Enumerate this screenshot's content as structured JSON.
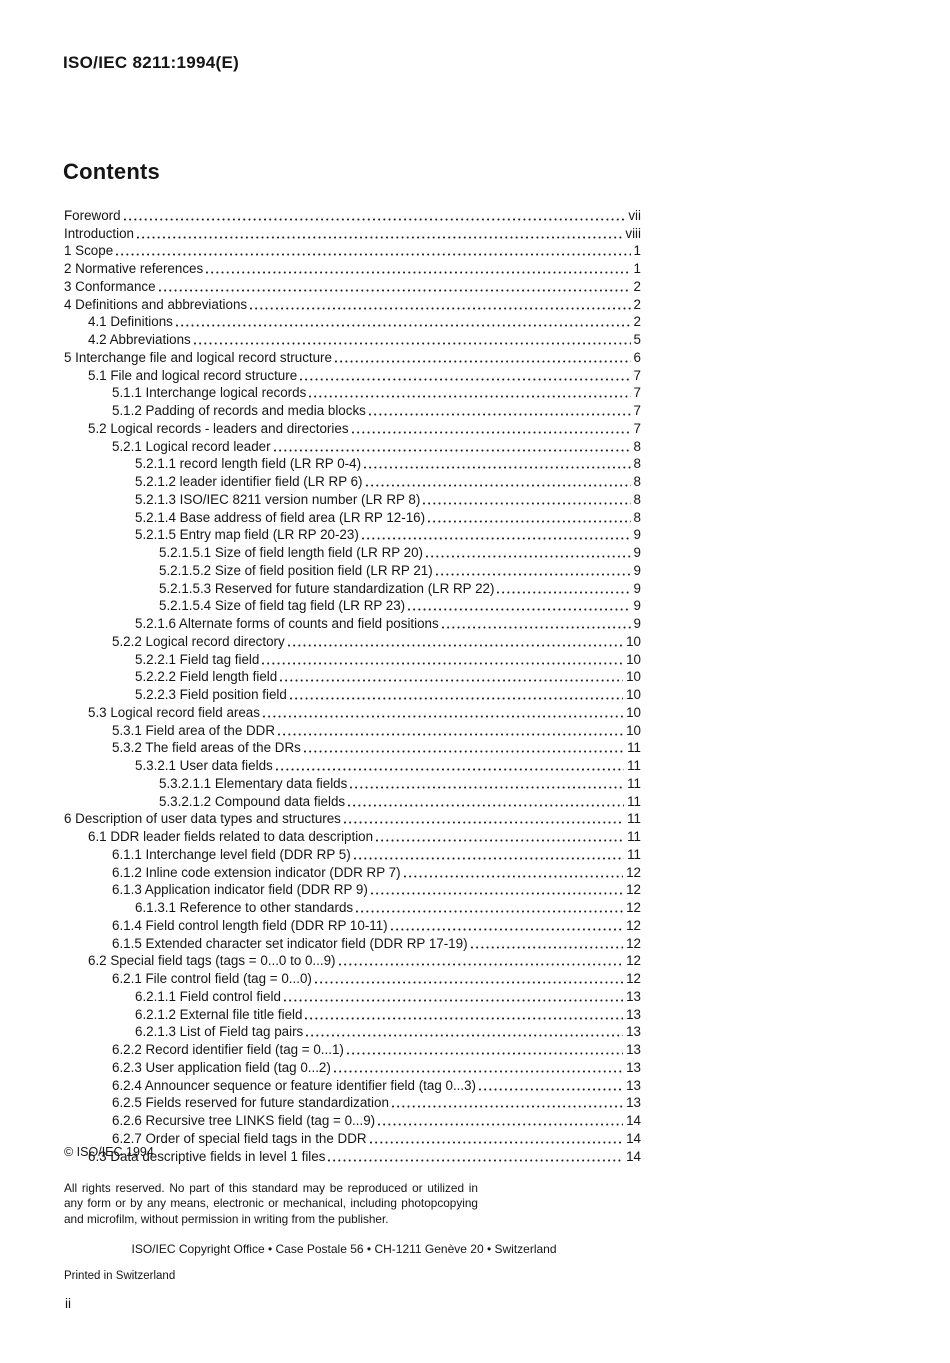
{
  "doc": {
    "header": "ISO/IEC 8211:1994(E)",
    "title": "Contents",
    "page_number": "ii"
  },
  "toc": {
    "entries": [
      {
        "level": 0,
        "label": "Foreword",
        "page": "vii"
      },
      {
        "level": 0,
        "label": "Introduction",
        "page": "viii"
      },
      {
        "level": 0,
        "label": "1 Scope",
        "page": "1"
      },
      {
        "level": 0,
        "label": "2 Normative references",
        "page": "1"
      },
      {
        "level": 0,
        "label": "3 Conformance",
        "page": "2"
      },
      {
        "level": 0,
        "label": "4 Definitions and abbreviations",
        "page": "2"
      },
      {
        "level": 1,
        "label": "4.1 Definitions",
        "page": "2"
      },
      {
        "level": 1,
        "label": "4.2 Abbreviations",
        "page": "5"
      },
      {
        "level": 0,
        "label": "5 Interchange file and logical record structure",
        "page": "6"
      },
      {
        "level": 1,
        "label": "5.1 File and logical record structure",
        "page": "7"
      },
      {
        "level": 2,
        "label": "5.1.1 Interchange logical records",
        "page": "7"
      },
      {
        "level": 2,
        "label": "5.1.2 Padding of records and media blocks",
        "page": "7"
      },
      {
        "level": 1,
        "label": "5.2 Logical records - leaders and directories",
        "page": "7"
      },
      {
        "level": 2,
        "label": "5.2.1 Logical record leader",
        "page": "8"
      },
      {
        "level": 3,
        "label": "5.2.1.1 record length field (LR RP 0-4)",
        "page": "8"
      },
      {
        "level": 3,
        "label": "5.2.1.2 leader identifier field (LR RP 6)",
        "page": "8"
      },
      {
        "level": 3,
        "label": "5.2.1.3 ISO/IEC 8211 version number (LR RP 8)",
        "page": "8"
      },
      {
        "level": 3,
        "label": "5.2.1.4 Base address of field area (LR RP 12-16)",
        "page": "8"
      },
      {
        "level": 3,
        "label": "5.2.1.5 Entry map field (LR RP 20-23)",
        "page": "9"
      },
      {
        "level": 4,
        "label": "5.2.1.5.1 Size of field length field (LR RP 20)",
        "page": "9"
      },
      {
        "level": 4,
        "label": "5.2.1.5.2 Size of field position field (LR RP 21)",
        "page": "9"
      },
      {
        "level": 4,
        "label": "5.2.1.5.3 Reserved for future standardization (LR RP 22)",
        "page": "9"
      },
      {
        "level": 4,
        "label": "5.2.1.5.4 Size of field tag field (LR RP 23)",
        "page": "9"
      },
      {
        "level": 3,
        "label": "5.2.1.6 Alternate forms of counts and field positions",
        "page": "9"
      },
      {
        "level": 2,
        "label": "5.2.2 Logical record directory",
        "page": "10"
      },
      {
        "level": 3,
        "label": "5.2.2.1 Field tag field",
        "page": "10"
      },
      {
        "level": 3,
        "label": "5.2.2.2 Field length field",
        "page": "10"
      },
      {
        "level": 3,
        "label": "5.2.2.3 Field position field",
        "page": "10"
      },
      {
        "level": 1,
        "label": "5.3 Logical record field areas",
        "page": "10"
      },
      {
        "level": 2,
        "label": "5.3.1 Field area of the DDR",
        "page": "10"
      },
      {
        "level": 2,
        "label": "5.3.2 The field areas of the DRs",
        "page": "11"
      },
      {
        "level": 3,
        "label": "5.3.2.1 User data fields",
        "page": "11"
      },
      {
        "level": 4,
        "label": "5.3.2.1.1 Elementary data fields",
        "page": "11"
      },
      {
        "level": 4,
        "label": "5.3.2.1.2 Compound data fields",
        "page": "11"
      },
      {
        "level": 0,
        "label": "6 Description of user data types and structures",
        "page": "11"
      },
      {
        "level": 1,
        "label": "6.1 DDR leader fields related to data description",
        "page": "11"
      },
      {
        "level": 2,
        "label": "6.1.1 Interchange level field (DDR RP 5)",
        "page": "11"
      },
      {
        "level": 2,
        "label": "6.1.2 Inline code extension indicator (DDR RP 7)",
        "page": "12"
      },
      {
        "level": 2,
        "label": "6.1.3 Application indicator field (DDR RP 9)",
        "page": "12"
      },
      {
        "level": 3,
        "label": "6.1.3.1 Reference to other standards",
        "page": "12"
      },
      {
        "level": 2,
        "label": "6.1.4 Field control length field (DDR RP 10-11)",
        "page": "12"
      },
      {
        "level": 2,
        "label": "6.1.5 Extended character set indicator field (DDR RP 17-19)",
        "page": "12"
      },
      {
        "level": 1,
        "label": "6.2 Special field tags (tags = 0...0 to 0...9)",
        "page": "12"
      },
      {
        "level": 2,
        "label": "6.2.1 File control field (tag = 0...0)",
        "page": "12"
      },
      {
        "level": 3,
        "label": "6.2.1.1 Field control field",
        "page": "13"
      },
      {
        "level": 3,
        "label": "6.2.1.2 External file title field",
        "page": "13"
      },
      {
        "level": 3,
        "label": "6.2.1.3 List of Field tag pairs",
        "page": "13"
      },
      {
        "level": 2,
        "label": "6.2.2 Record identifier field (tag = 0...1)",
        "page": "13"
      },
      {
        "level": 2,
        "label": "6.2.3 User application field (tag 0...2)",
        "page": "13"
      },
      {
        "level": 2,
        "label": "6.2.4 Announcer sequence or feature identifier field (tag 0...3)",
        "page": "13"
      },
      {
        "level": 2,
        "label": "6.2.5 Fields reserved for future standardization",
        "page": "13"
      },
      {
        "level": 2,
        "label": "6.2.6 Recursive tree LINKS field (tag = 0...9)",
        "page": "14"
      },
      {
        "level": 2,
        "label": "6.2.7 Order of special field tags in the DDR",
        "page": "14"
      },
      {
        "level": 1,
        "label": "6.3 Data descriptive fields in level 1 files",
        "page": "14"
      }
    ]
  },
  "footer": {
    "copyright": "© ISO/IEC 1994",
    "rights": "All rights reserved. No part of this standard may be reproduced or utilized in any form or by any means, electronic or mechanical, including photopcopying and microfilm, without permission in writing from the publisher.",
    "address": "ISO/IEC Copyright Office • Case Postale 56 • CH-1211 Genève 20 • Switzerland",
    "printed": "Printed in Switzerland"
  }
}
